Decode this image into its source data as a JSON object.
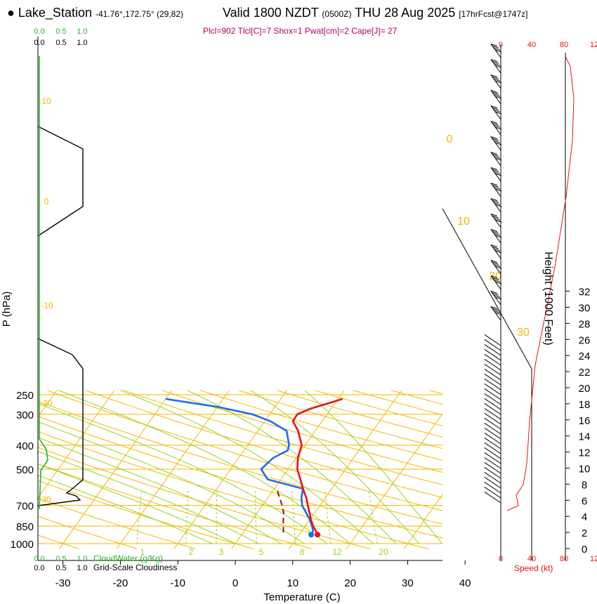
{
  "header": {
    "station": "Lake_Station",
    "coords": "-41.76°,172.75° (29,82)",
    "valid": "Valid 1800 NZDT",
    "utc": "(0500Z)",
    "date": "THU 28 Aug 2025",
    "forecast": "[17hrFcst@1747z]",
    "params": "Plcl=902 Tlcl[C]=7 Shox=1 Pwat[cm]=2 Cape[J]= 27"
  },
  "colors": {
    "temperature": "#e8131b",
    "dewpoint": "#1f6fe8",
    "isotherm": "#f5b800",
    "dry_adiabat": "#f5b800",
    "moist_adiabat": "#9ad21f",
    "mixing_ratio": "#9ad21f",
    "cloud": "#000000",
    "cloudwater": "#2bb02b",
    "wind_speed": "#e8131b"
  },
  "chart_data": {
    "type": "skew-t",
    "xlabel": "Temperature (C)",
    "ylabel": "P (hPa)",
    "y2label": "Height (1000 Feet)",
    "speed_label": "Speed (kt)",
    "x_ticks": [
      -30,
      -20,
      -10,
      0,
      10,
      20,
      30,
      40
    ],
    "p_ticks": [
      250,
      300,
      400,
      500,
      700,
      850,
      1000
    ],
    "height_ticks": [
      0,
      2,
      4,
      6,
      8,
      10,
      12,
      14,
      16,
      18,
      20,
      22,
      24,
      26,
      28,
      30,
      32
    ],
    "mixing_ratio_labels": [
      "1",
      "2",
      "3",
      "5",
      "8",
      "12",
      "20"
    ],
    "dry_adiabat_labels": [
      "0",
      "10",
      "20",
      "30"
    ],
    "isotherm_labels": [
      "10",
      "0",
      "-10",
      "-20",
      "-30"
    ],
    "temperature": [
      {
        "p": 920,
        "t": 13.2
      },
      {
        "p": 890,
        "t": 12.5
      },
      {
        "p": 850,
        "t": 11.4
      },
      {
        "p": 800,
        "t": 10.2
      },
      {
        "p": 750,
        "t": 9.1
      },
      {
        "p": 700,
        "t": 7.9
      },
      {
        "p": 650,
        "t": 6.6
      },
      {
        "p": 600,
        "t": 5.0
      },
      {
        "p": 550,
        "t": 3.4
      },
      {
        "p": 500,
        "t": 1.6
      },
      {
        "p": 450,
        "t": 0.3
      },
      {
        "p": 400,
        "t": -0.6
      },
      {
        "p": 350,
        "t": -3.0
      },
      {
        "p": 320,
        "t": -5.1
      },
      {
        "p": 300,
        "t": -5.2
      },
      {
        "p": 285,
        "t": -3.6
      },
      {
        "p": 260,
        "t": 0.8
      }
    ],
    "dewpoint": [
      {
        "p": 920,
        "t": 12.1
      },
      {
        "p": 890,
        "t": 12.0
      },
      {
        "p": 850,
        "t": 11.2
      },
      {
        "p": 800,
        "t": 10.0
      },
      {
        "p": 750,
        "t": 8.5
      },
      {
        "p": 700,
        "t": 6.9
      },
      {
        "p": 650,
        "t": 5.8
      },
      {
        "p": 600,
        "t": 5.0
      },
      {
        "p": 550,
        "t": -2.3
      },
      {
        "p": 500,
        "t": -4.7
      },
      {
        "p": 450,
        "t": -4.0
      },
      {
        "p": 420,
        "t": -2.4
      },
      {
        "p": 400,
        "t": -2.8
      },
      {
        "p": 350,
        "t": -5.0
      },
      {
        "p": 320,
        "t": -9.0
      },
      {
        "p": 300,
        "t": -13.0
      },
      {
        "p": 280,
        "t": -20.0
      },
      {
        "p": 260,
        "t": -30.0
      }
    ],
    "parcel": [
      {
        "p": 902,
        "t": 7.0
      },
      {
        "p": 850,
        "t": 6.2
      },
      {
        "p": 800,
        "t": 5.4
      },
      {
        "p": 750,
        "t": 4.6
      },
      {
        "p": 700,
        "t": 3.4
      },
      {
        "p": 650,
        "t": 2.0
      },
      {
        "p": 600,
        "t": 0.4
      }
    ],
    "wind_speed_axis": [
      "0",
      "40",
      "80",
      "12"
    ],
    "cloudwater_label": "CloudWater (g/Kg)",
    "cloudiness_label": "Grid-Scale Cloudiness",
    "scale_top": [
      "0.0",
      "0.5",
      "1.0"
    ],
    "scale_bottom": [
      "0.0",
      "0.5",
      "1.0"
    ]
  }
}
